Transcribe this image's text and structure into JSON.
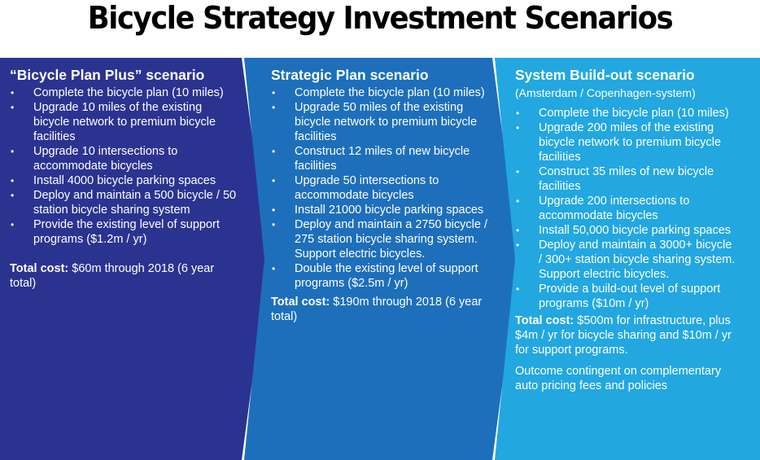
{
  "title": "Bicycle Strategy Investment Scenarios",
  "colors": {
    "panel1": "#2b3390",
    "panel2": "#1d6fbb",
    "panel3": "#22a7e0"
  },
  "scenarios": [
    {
      "heading": "“Bicycle Plan Plus” scenario",
      "items": [
        "Complete the bicycle plan (10 miles)",
        "Upgrade 10 miles of the existing bicycle network to premium bicycle facilities",
        "Upgrade 10 intersections to accommodate bicycles",
        "Install 4000 bicycle parking spaces",
        "Deploy and maintain a 500 bicycle / 50 station bicycle sharing system",
        "Provide the existing level of support programs ($1.2m / yr)"
      ],
      "total_label": "Total cost:",
      "total_text": " $60m through 2018 (6 year total)"
    },
    {
      "heading": "Strategic Plan scenario",
      "items": [
        "Complete the bicycle plan (10 miles)",
        "Upgrade 50 miles of the existing bicycle network to premium bicycle facilities",
        "Construct 12 miles of new bicycle facilities",
        "Upgrade 50 intersections to accommodate bicycles",
        "Install 21000 bicycle parking spaces",
        "Deploy and maintain a 2750 bicycle / 275 station bicycle sharing system. Support electric bicycles.",
        "Double the existing level of support programs ($2.5m / yr)"
      ],
      "total_label": "Total cost:",
      "total_text": " $190m through 2018 (6 year total)"
    },
    {
      "heading": "System Build-out scenario",
      "subheading": "(Amsterdam / Copenhagen-system)",
      "items": [
        "Complete the bicycle plan (10 miles)",
        "Upgrade 200 miles of the existing bicycle network to premium bicycle facilities",
        "Construct 35 miles of new bicycle facilities",
        "Upgrade 200 intersections to accommodate bicycles",
        "Install 50,000 bicycle parking spaces",
        "Deploy and maintain a 3000+ bicycle / 300+ station bicycle sharing system. Support electric bicycles.",
        "Provide a build-out level of support programs ($10m / yr)"
      ],
      "total_label": "Total cost:",
      "total_text": " $500m for infrastructure, plus $4m / yr for bicycle sharing and $10m / yr for support programs.",
      "note": "Outcome contingent on complementary auto pricing fees and policies"
    }
  ]
}
